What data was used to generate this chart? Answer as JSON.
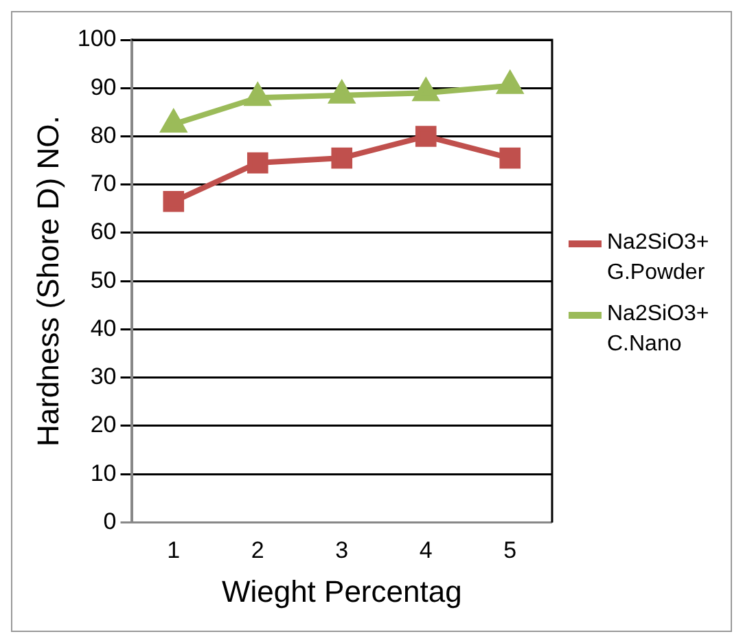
{
  "chart_data": {
    "type": "line",
    "xlabel": "Wieght Percentag",
    "ylabel": "Hardness (Shore D) NO.",
    "categories": [
      "1",
      "2",
      "3",
      "4",
      "5"
    ],
    "series": [
      {
        "name": "Na2SiO3+ G.Powder",
        "color": "#c0504d",
        "marker": "square",
        "values": [
          66.5,
          74.5,
          75.5,
          80,
          75.5
        ]
      },
      {
        "name": "Na2SiO3+ C.Nano",
        "color": "#9bbb59",
        "marker": "triangle",
        "values": [
          82.5,
          88,
          88.5,
          89,
          90.5
        ]
      }
    ],
    "ylim": [
      0,
      100
    ],
    "yticks": [
      0,
      10,
      20,
      30,
      40,
      50,
      60,
      70,
      80,
      90,
      100
    ],
    "grid": "y",
    "legend": "right"
  }
}
